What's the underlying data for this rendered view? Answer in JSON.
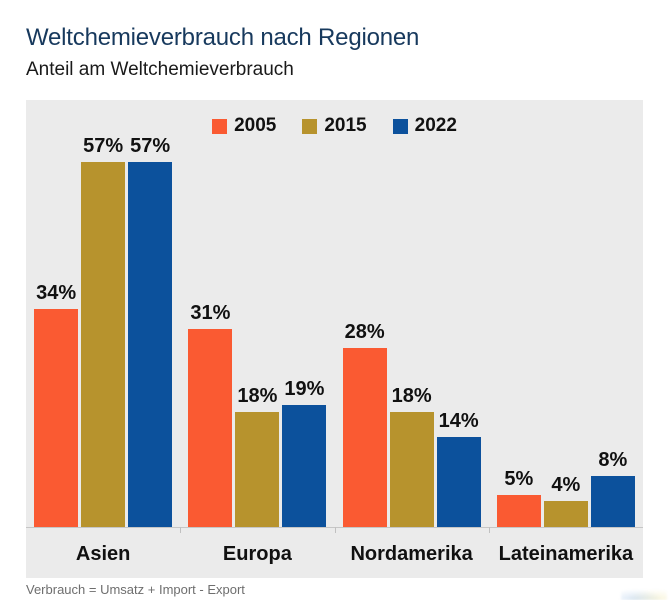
{
  "header": {
    "title": "Weltchemieverbrauch nach Regionen",
    "subtitle": "Anteil am Weltchemieverbrauch"
  },
  "footer": {
    "note": "Verbrauch = Umsatz + Import - Export"
  },
  "colors": {
    "title": "#17395d",
    "panel_bg": "#ebebeb",
    "axis": "#c6c6c6",
    "series_2005": "#fa5a32",
    "series_2015": "#b7932d",
    "series_2022": "#0c519c"
  },
  "chart_data": {
    "type": "bar",
    "title": "Weltchemieverbrauch nach Regionen",
    "subtitle": "Anteil am Weltchemieverbrauch",
    "categories": [
      "Asien",
      "Europa",
      "Nordamerika",
      "Lateinamerika"
    ],
    "series": [
      {
        "name": "2005",
        "color": "#fa5a32",
        "values": [
          34,
          31,
          28,
          5
        ]
      },
      {
        "name": "2015",
        "color": "#b7932d",
        "values": [
          57,
          18,
          18,
          4
        ]
      },
      {
        "name": "2022",
        "color": "#0c519c",
        "values": [
          57,
          19,
          14,
          8
        ]
      }
    ],
    "value_suffix": "%",
    "ylim": [
      0,
      60
    ],
    "grid": false,
    "legend_position": "top-center",
    "value_labels": "above-bars"
  }
}
